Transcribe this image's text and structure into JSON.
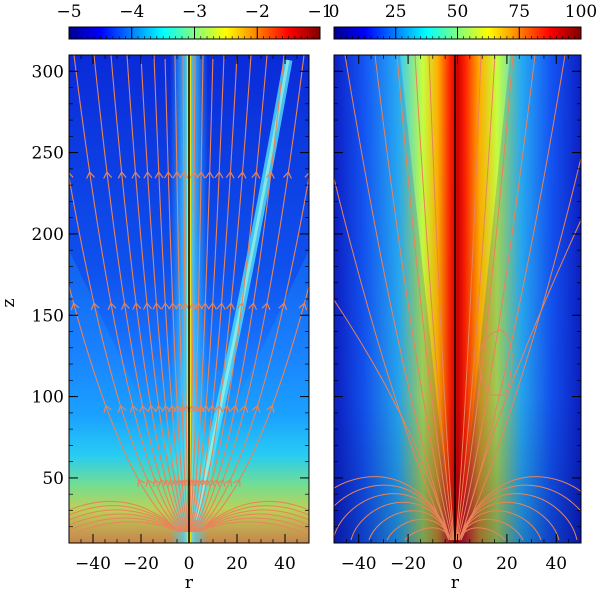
{
  "chart_data": [
    {
      "type": "heatmap",
      "panel": "left",
      "title": "",
      "xlabel": "r",
      "ylabel": "z",
      "xlim": [
        -50,
        50
      ],
      "ylim": [
        10,
        310
      ],
      "xticks": [
        -40,
        -20,
        0,
        20,
        40
      ],
      "xtick_labels": [
        "−40",
        "−20",
        "0",
        "20",
        "40"
      ],
      "yticks": [
        50,
        100,
        150,
        200,
        250,
        300
      ],
      "ytick_labels": [
        "50",
        "100",
        "150",
        "200",
        "250",
        "300"
      ],
      "colorbar": {
        "position": "top",
        "range": [
          -5,
          -1
        ],
        "ticks": [
          -5,
          -4,
          -3,
          -2,
          -1
        ],
        "tick_labels": [
          "−5",
          "−4",
          "−3",
          "−2",
          "−1"
        ],
        "colormap": "jet"
      },
      "overlay": "field lines with direction arrows",
      "line_color": "#e8845a"
    },
    {
      "type": "heatmap",
      "panel": "right",
      "title": "",
      "xlabel": "r",
      "ylabel": "",
      "xlim": [
        -50,
        50
      ],
      "ylim": [
        10,
        310
      ],
      "xticks": [
        -40,
        -20,
        0,
        20,
        40
      ],
      "xtick_labels": [
        "−40",
        "−20",
        "0",
        "20",
        "40"
      ],
      "colorbar": {
        "position": "top",
        "range": [
          0,
          100
        ],
        "ticks": [
          0,
          25,
          50,
          75,
          100
        ],
        "tick_labels": [
          "0",
          "25",
          "50",
          "75",
          "100"
        ],
        "colormap": "jet"
      },
      "overlay": "contour lines",
      "line_color": "#e8845a"
    }
  ]
}
